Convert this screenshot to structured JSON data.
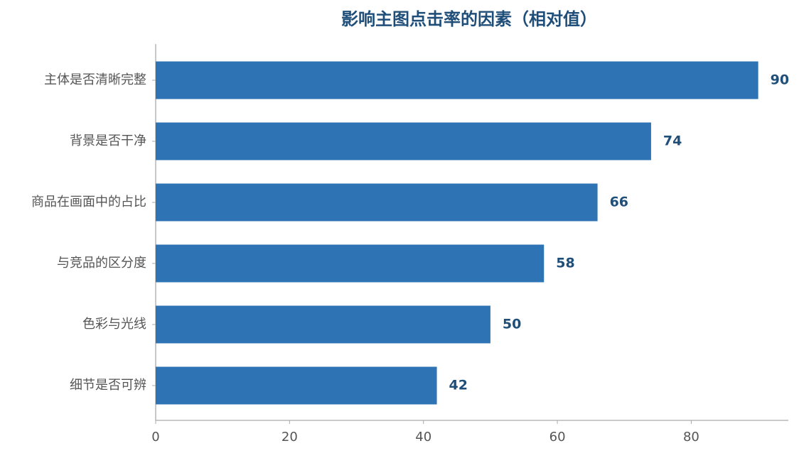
{
  "chart_data": {
    "type": "barh",
    "title": "影响主图点击率的因素（相对值）",
    "categories": [
      "主体是否清晰完整",
      "背景是否干净",
      "商品在画面中的占比",
      "与竞品的区分度",
      "色彩与光线",
      "细节是否可辨"
    ],
    "values": [
      90,
      74,
      66,
      58,
      50,
      42
    ],
    "color": "#2e73b4",
    "xlim": [
      0,
      94.5
    ],
    "xticks": [
      0,
      20,
      40,
      60,
      80
    ],
    "grid": false
  }
}
